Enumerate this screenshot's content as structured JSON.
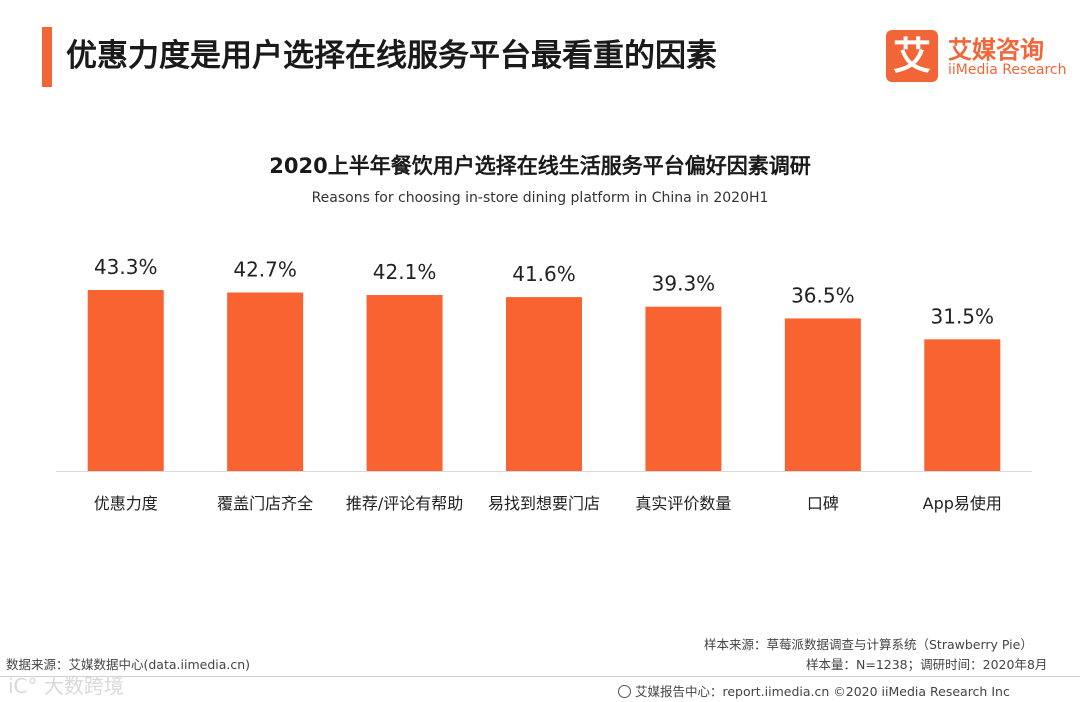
{
  "header": {
    "title": "优惠力度是用户选择在线服务平台最看重的因素",
    "accent_color": "#f26536"
  },
  "logo": {
    "mark": "艾",
    "name_cn": "艾媒咨询",
    "name_en": "iiMedia Research"
  },
  "chart_data": {
    "type": "bar",
    "title": "2020上半年餐饮用户选择在线生活服务平台偏好因素调研",
    "subtitle": "Reasons for choosing in-store dining platform in China in 2020H1",
    "categories": [
      "优惠力度",
      "覆盖门店齐全",
      "推荐/评论有帮助",
      "易找到想要门店",
      "真实评价数量",
      "口碑",
      "App易使用"
    ],
    "values": [
      43.3,
      42.7,
      42.1,
      41.6,
      39.3,
      36.5,
      31.5
    ],
    "value_labels": [
      "43.3%",
      "42.7%",
      "42.1%",
      "41.6%",
      "39.3%",
      "36.5%",
      "31.5%"
    ],
    "unit": "%",
    "ylim": [
      0,
      50
    ],
    "xlabel": "",
    "ylabel": "",
    "grid": false,
    "bar_color": "#f96332"
  },
  "footer": {
    "data_source": "数据来源：艾媒数据中心(data.iimedia.cn)",
    "sample_source": "样本来源：草莓派数据调查与计算系统（Strawberry Pie）",
    "sample_info": "样本量：N=1238；调研时间：2020年8月",
    "report_center": "艾媒报告中心：report.iimedia.cn  ©2020  iiMedia Research  Inc",
    "watermark": "iC° 大数跨境"
  }
}
